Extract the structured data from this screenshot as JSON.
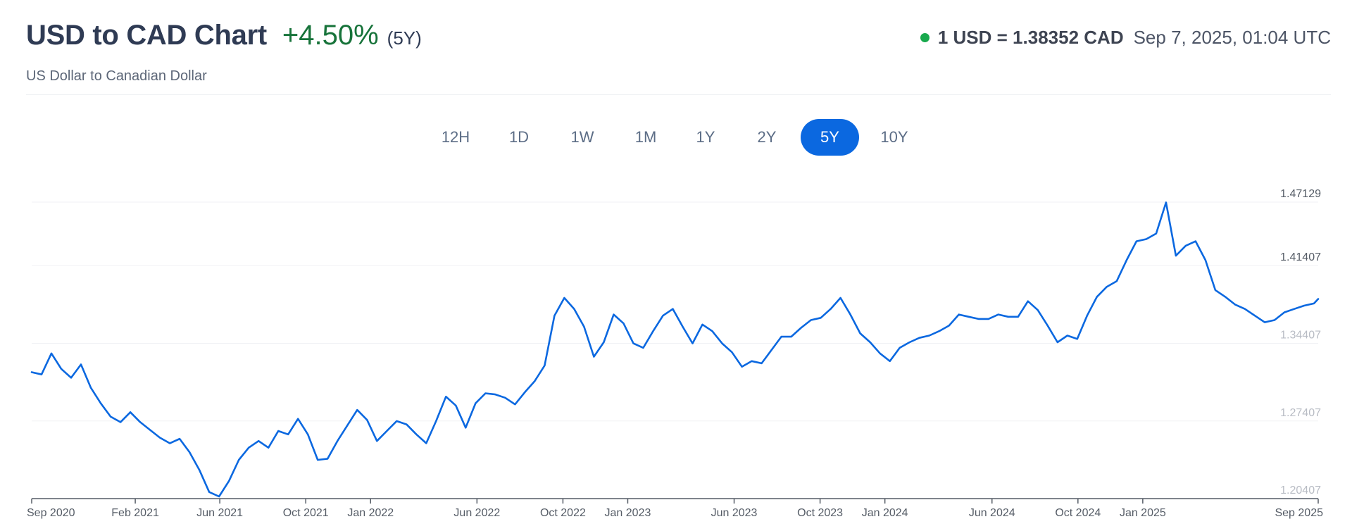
{
  "header": {
    "title": "USD to CAD Chart",
    "change": "+4.50%",
    "period": "(5Y)",
    "subtitle": "US Dollar to Canadian Dollar"
  },
  "rate": {
    "value": "1 USD = 1.38352 CAD",
    "timestamp": "Sep 7, 2025, 01:04 UTC",
    "status_color": "#18a94d"
  },
  "tabs": [
    {
      "label": "12H",
      "active": false
    },
    {
      "label": "1D",
      "active": false
    },
    {
      "label": "1W",
      "active": false
    },
    {
      "label": "1M",
      "active": false
    },
    {
      "label": "1Y",
      "active": false
    },
    {
      "label": "2Y",
      "active": false
    },
    {
      "label": "5Y",
      "active": true
    },
    {
      "label": "10Y",
      "active": false
    }
  ],
  "colors": {
    "line": "#0b68e0",
    "accent": "#0b68e0",
    "positive": "#17733a"
  },
  "chart_data": {
    "type": "line",
    "title": "",
    "xlabel": "",
    "ylabel": "",
    "x_ticks": [
      "Sep 2020",
      "Feb 2021",
      "Jun 2021",
      "Oct 2021",
      "Jan 2022",
      "Jun 2022",
      "Oct 2022",
      "Jan 2023",
      "Jun 2023",
      "Oct 2023",
      "Jan 2024",
      "Jun 2024",
      "Oct 2024",
      "Jan 2025",
      "Sep 2025"
    ],
    "y_ticks": [
      "1.47129",
      "1.41407",
      "1.34407",
      "1.27407",
      "1.20407"
    ],
    "ylim": [
      1.2041,
      1.4713
    ],
    "xlim": [
      "2020-09-07",
      "2025-09-07"
    ],
    "grid": true,
    "series": [
      {
        "x": [
          "2020-09-07",
          "2020-09-21",
          "2020-10-05",
          "2020-10-19",
          "2020-11-02",
          "2020-11-16",
          "2020-11-30",
          "2020-12-14",
          "2020-12-28",
          "2021-01-11",
          "2021-01-25",
          "2021-02-08",
          "2021-02-22",
          "2021-03-08",
          "2021-03-22",
          "2021-04-05",
          "2021-04-19",
          "2021-05-03",
          "2021-05-17",
          "2021-05-31",
          "2021-06-14",
          "2021-06-28",
          "2021-07-12",
          "2021-07-26",
          "2021-08-09",
          "2021-08-23",
          "2021-09-06",
          "2021-09-20",
          "2021-10-04",
          "2021-10-18",
          "2021-11-01",
          "2021-11-15",
          "2021-11-29",
          "2021-12-13",
          "2021-12-27",
          "2022-01-10",
          "2022-01-24",
          "2022-02-07",
          "2022-02-21",
          "2022-03-07",
          "2022-03-21",
          "2022-04-04",
          "2022-04-18",
          "2022-05-02",
          "2022-05-16",
          "2022-05-30",
          "2022-06-13",
          "2022-06-27",
          "2022-07-11",
          "2022-07-25",
          "2022-08-08",
          "2022-08-22",
          "2022-09-05",
          "2022-09-19",
          "2022-10-03",
          "2022-10-17",
          "2022-10-31",
          "2022-11-14",
          "2022-11-28",
          "2022-12-12",
          "2022-12-26",
          "2023-01-09",
          "2023-01-23",
          "2023-02-06",
          "2023-02-20",
          "2023-03-06",
          "2023-03-20",
          "2023-04-03",
          "2023-04-17",
          "2023-05-01",
          "2023-05-15",
          "2023-05-29",
          "2023-06-12",
          "2023-06-26",
          "2023-07-10",
          "2023-07-24",
          "2023-08-07",
          "2023-08-21",
          "2023-09-04",
          "2023-09-18",
          "2023-10-02",
          "2023-10-16",
          "2023-10-30",
          "2023-11-13",
          "2023-11-27",
          "2023-12-11",
          "2023-12-25",
          "2024-01-08",
          "2024-01-22",
          "2024-02-05",
          "2024-02-19",
          "2024-03-04",
          "2024-03-18",
          "2024-04-01",
          "2024-04-15",
          "2024-04-29",
          "2024-05-13",
          "2024-05-27",
          "2024-06-10",
          "2024-06-24",
          "2024-07-08",
          "2024-07-22",
          "2024-08-05",
          "2024-08-19",
          "2024-09-02",
          "2024-09-16",
          "2024-09-30",
          "2024-10-14",
          "2024-10-28",
          "2024-11-11",
          "2024-11-25",
          "2024-12-09",
          "2024-12-23",
          "2025-01-06",
          "2025-01-20",
          "2025-02-03",
          "2025-02-17",
          "2025-03-03",
          "2025-03-17",
          "2025-03-31",
          "2025-04-14",
          "2025-04-28",
          "2025-05-12",
          "2025-05-26",
          "2025-06-09",
          "2025-06-23",
          "2025-07-07",
          "2025-07-21",
          "2025-08-04",
          "2025-08-18",
          "2025-09-01",
          "2025-09-07"
        ],
        "y": [
          1.318,
          1.316,
          1.335,
          1.321,
          1.313,
          1.325,
          1.304,
          1.29,
          1.278,
          1.273,
          1.282,
          1.273,
          1.266,
          1.259,
          1.254,
          1.258,
          1.246,
          1.23,
          1.21,
          1.206,
          1.22,
          1.239,
          1.25,
          1.256,
          1.25,
          1.265,
          1.262,
          1.276,
          1.262,
          1.239,
          1.24,
          1.256,
          1.27,
          1.284,
          1.275,
          1.256,
          1.265,
          1.274,
          1.271,
          1.262,
          1.254,
          1.274,
          1.296,
          1.288,
          1.268,
          1.29,
          1.299,
          1.298,
          1.295,
          1.289,
          1.3,
          1.31,
          1.324,
          1.369,
          1.385,
          1.375,
          1.359,
          1.332,
          1.345,
          1.37,
          1.362,
          1.344,
          1.34,
          1.355,
          1.369,
          1.375,
          1.359,
          1.344,
          1.361,
          1.355,
          1.344,
          1.336,
          1.323,
          1.328,
          1.326,
          1.338,
          1.35,
          1.35,
          1.358,
          1.365,
          1.367,
          1.375,
          1.385,
          1.37,
          1.353,
          1.345,
          1.335,
          1.328,
          1.34,
          1.345,
          1.349,
          1.351,
          1.355,
          1.36,
          1.37,
          1.368,
          1.366,
          1.366,
          1.37,
          1.368,
          1.368,
          1.382,
          1.374,
          1.36,
          1.345,
          1.351,
          1.348,
          1.369,
          1.386,
          1.395,
          1.4,
          1.419,
          1.436,
          1.438,
          1.443,
          1.471,
          1.423,
          1.432,
          1.436,
          1.419,
          1.392,
          1.386,
          1.379,
          1.375,
          1.369,
          1.363,
          1.365,
          1.372,
          1.375,
          1.378,
          1.38,
          1.384
        ]
      }
    ]
  }
}
